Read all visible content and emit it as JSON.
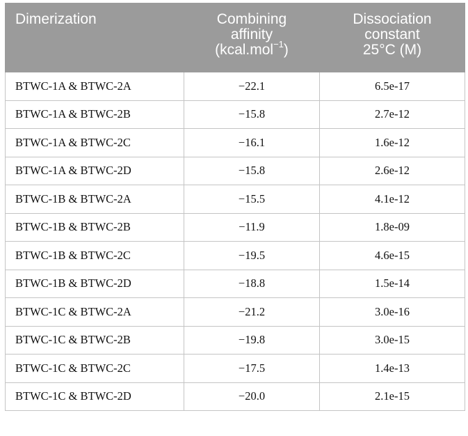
{
  "table": {
    "headers": {
      "dimerization": "Dimerization",
      "affinity": {
        "line1": "Combining",
        "line2": "affinity",
        "line3_base": "(kcal.mol",
        "line3_sup": "−1",
        "line3_end": ")"
      },
      "dissociation": {
        "line1": "Dissociation",
        "line2": "constant",
        "line3": "25°C (M)"
      }
    },
    "rows": [
      {
        "dimerization": "BTWC-1A & BTWC-2A",
        "affinity": "−22.1",
        "kd": "6.5e-17"
      },
      {
        "dimerization": "BTWC-1A & BTWC-2B",
        "affinity": "−15.8",
        "kd": "2.7e-12"
      },
      {
        "dimerization": "BTWC-1A & BTWC-2C",
        "affinity": "−16.1",
        "kd": "1.6e-12"
      },
      {
        "dimerization": "BTWC-1A & BTWC-2D",
        "affinity": "−15.8",
        "kd": "2.6e-12"
      },
      {
        "dimerization": "BTWC-1B & BTWC-2A",
        "affinity": "−15.5",
        "kd": "4.1e-12"
      },
      {
        "dimerization": "BTWC-1B & BTWC-2B",
        "affinity": "−11.9",
        "kd": "1.8e-09"
      },
      {
        "dimerization": "BTWC-1B & BTWC-2C",
        "affinity": "−19.5",
        "kd": "4.6e-15"
      },
      {
        "dimerization": "BTWC-1B & BTWC-2D",
        "affinity": "−18.8",
        "kd": "1.5e-14"
      },
      {
        "dimerization": "BTWC-1C & BTWC-2A",
        "affinity": "−21.2",
        "kd": "3.0e-16"
      },
      {
        "dimerization": "BTWC-1C & BTWC-2B",
        "affinity": "−19.8",
        "kd": "3.0e-15"
      },
      {
        "dimerization": "BTWC-1C & BTWC-2C",
        "affinity": "−17.5",
        "kd": "1.4e-13"
      },
      {
        "dimerization": "BTWC-1C & BTWC-2D",
        "affinity": "−20.0",
        "kd": "2.1e-15"
      }
    ]
  }
}
